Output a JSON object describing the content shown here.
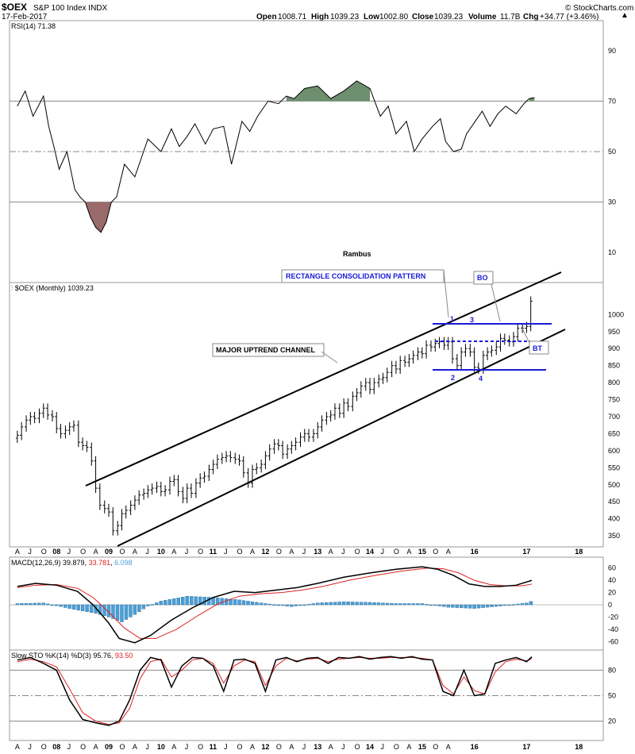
{
  "header": {
    "symbol": "$OEX",
    "name": "S&P 100 Index INDX",
    "date": "17-Feb-2017",
    "open_label": "Open",
    "open": "1008.71",
    "high_label": "High",
    "high": "1039.23",
    "low_label": "Low",
    "low": "1002.80",
    "close_label": "Close",
    "close": "1039.23",
    "volume_label": "Volume",
    "volume": "11.7B",
    "chg_label": "Chg",
    "chg": "+34.77 (+3.46%)",
    "watermark": "© StockCharts.com",
    "author": "Rambus"
  },
  "colors": {
    "price": "#000000",
    "channel": "#000000",
    "pattern_blue": "#1a1ad8",
    "macd_signal": "#e02020",
    "histogram": "#4aa0d8",
    "rsi_overbought_fill": "#6e8f6e",
    "rsi_oversold_fill": "#9a6a6a",
    "sto_d": "#e02020"
  },
  "chart_data": [
    {
      "type": "line",
      "panel": "rsi",
      "legend": "RSI(14) 71.38",
      "ylim": [
        0,
        100
      ],
      "yticks": [
        10,
        30,
        50,
        70,
        90
      ],
      "reference_lines": {
        "overbought": 70,
        "midline": 50,
        "oversold": 30
      },
      "series": [
        {
          "name": "RSI(14)",
          "x": [
            2007.25,
            2007.4,
            2007.55,
            2007.75,
            2007.85,
            2007.95,
            2008.05,
            2008.2,
            2008.35,
            2008.45,
            2008.55,
            2008.65,
            2008.75,
            2008.85,
            2008.95,
            2009.05,
            2009.15,
            2009.3,
            2009.5,
            2009.75,
            2010.0,
            2010.2,
            2010.35,
            2010.5,
            2010.65,
            2010.85,
            2011.0,
            2011.2,
            2011.35,
            2011.55,
            2011.7,
            2011.85,
            2012.05,
            2012.25,
            2012.4,
            2012.55,
            2012.75,
            2013.0,
            2013.25,
            2013.5,
            2013.75,
            2014.0,
            2014.2,
            2014.35,
            2014.5,
            2014.7,
            2014.85,
            2015.0,
            2015.2,
            2015.35,
            2015.45,
            2015.6,
            2015.75,
            2015.85,
            2015.95,
            2016.05,
            2016.15,
            2016.3,
            2016.45,
            2016.6,
            2016.8,
            2016.95,
            2017.05,
            2017.15
          ],
          "values": [
            68,
            74,
            64,
            72,
            60,
            52,
            43,
            50,
            35,
            32,
            30,
            24,
            20,
            18,
            22,
            30,
            32,
            45,
            40,
            55,
            50,
            59,
            52,
            56,
            61,
            53,
            59,
            60,
            45,
            62,
            58,
            64,
            70,
            69,
            72,
            71,
            75,
            76,
            71,
            74,
            78,
            75,
            64,
            68,
            57,
            62,
            50,
            55,
            60,
            63,
            54,
            50,
            51,
            57,
            60,
            63,
            66,
            60,
            65,
            68,
            65,
            69,
            71,
            71.38
          ]
        }
      ]
    },
    {
      "type": "ohlc",
      "panel": "price",
      "title": "$OEX (Monthly) 1039.23",
      "ylim": [
        320,
        1080
      ],
      "yticks": [
        350,
        400,
        450,
        500,
        550,
        600,
        650,
        700,
        750,
        800,
        850,
        900,
        950,
        1000
      ],
      "series": [
        {
          "name": "$OEX",
          "x": [
            2007.25,
            2007.33,
            2007.42,
            2007.5,
            2007.58,
            2007.67,
            2007.75,
            2007.83,
            2007.92,
            2008.0,
            2008.08,
            2008.17,
            2008.25,
            2008.33,
            2008.42,
            2008.5,
            2008.58,
            2008.67,
            2008.75,
            2008.83,
            2008.92,
            2009.0,
            2009.08,
            2009.17,
            2009.25,
            2009.33,
            2009.42,
            2009.5,
            2009.58,
            2009.67,
            2009.75,
            2009.83,
            2009.92,
            2010.0,
            2010.08,
            2010.17,
            2010.25,
            2010.33,
            2010.42,
            2010.5,
            2010.58,
            2010.67,
            2010.75,
            2010.83,
            2010.92,
            2011.0,
            2011.08,
            2011.17,
            2011.25,
            2011.33,
            2011.42,
            2011.5,
            2011.58,
            2011.67,
            2011.75,
            2011.83,
            2011.92,
            2012.0,
            2012.08,
            2012.17,
            2012.25,
            2012.33,
            2012.42,
            2012.5,
            2012.58,
            2012.67,
            2012.75,
            2012.83,
            2012.92,
            2013.0,
            2013.08,
            2013.17,
            2013.25,
            2013.33,
            2013.42,
            2013.5,
            2013.58,
            2013.67,
            2013.75,
            2013.83,
            2013.92,
            2014.0,
            2014.08,
            2014.17,
            2014.25,
            2014.33,
            2014.42,
            2014.5,
            2014.58,
            2014.67,
            2014.75,
            2014.83,
            2014.92,
            2015.0,
            2015.08,
            2015.17,
            2015.25,
            2015.33,
            2015.42,
            2015.5,
            2015.58,
            2015.67,
            2015.75,
            2015.83,
            2015.92,
            2016.0,
            2016.08,
            2016.17,
            2016.25,
            2016.33,
            2016.42,
            2016.5,
            2016.58,
            2016.67,
            2016.75,
            2016.83,
            2016.92,
            2017.0,
            2017.08
          ],
          "close": [
            645,
            670,
            690,
            700,
            695,
            710,
            725,
            705,
            700,
            665,
            650,
            660,
            670,
            675,
            625,
            615,
            610,
            570,
            490,
            440,
            430,
            420,
            365,
            380,
            415,
            425,
            440,
            455,
            470,
            475,
            485,
            490,
            495,
            480,
            485,
            510,
            515,
            480,
            460,
            490,
            475,
            505,
            520,
            525,
            545,
            560,
            575,
            580,
            585,
            580,
            575,
            570,
            535,
            505,
            545,
            550,
            560,
            585,
            605,
            620,
            615,
            590,
            605,
            615,
            625,
            640,
            650,
            640,
            650,
            670,
            690,
            700,
            705,
            725,
            710,
            740,
            730,
            760,
            770,
            790,
            800,
            780,
            800,
            810,
            815,
            830,
            850,
            840,
            865,
            860,
            870,
            880,
            890,
            885,
            910,
            905,
            915,
            920,
            910,
            920,
            870,
            850,
            890,
            900,
            890,
            845,
            840,
            880,
            890,
            895,
            905,
            930,
            925,
            920,
            935,
            960,
            960,
            965,
            1039.23
          ]
        }
      ]
    },
    {
      "type": "line",
      "panel": "macd",
      "legend": "MACD(12,26,9) 39.879, 33.781, 6.098",
      "ylim": [
        -70,
        70
      ],
      "yticks": [
        -60,
        -40,
        -20,
        0,
        20,
        40,
        60
      ],
      "series": [
        {
          "name": "MACD(12,26,9)",
          "x": [
            2007.25,
            2007.6,
            2008.0,
            2008.4,
            2008.7,
            2009.0,
            2009.2,
            2009.5,
            2009.8,
            2010.2,
            2010.6,
            2011.0,
            2011.4,
            2011.8,
            2012.2,
            2012.6,
            2013.0,
            2013.5,
            2014.0,
            2014.5,
            2015.0,
            2015.3,
            2015.6,
            2015.9,
            2016.2,
            2016.5,
            2016.8,
            2017.1
          ],
          "values": [
            30,
            35,
            32,
            22,
            0,
            -30,
            -55,
            -62,
            -50,
            -25,
            -5,
            12,
            22,
            20,
            24,
            28,
            35,
            45,
            52,
            58,
            62,
            58,
            48,
            34,
            30,
            30,
            32,
            39.879
          ]
        },
        {
          "name": "signal",
          "x": [
            2007.25,
            2007.6,
            2008.0,
            2008.4,
            2008.7,
            2009.0,
            2009.3,
            2009.6,
            2009.9,
            2010.3,
            2010.7,
            2011.1,
            2011.5,
            2011.9,
            2012.3,
            2012.7,
            2013.1,
            2013.6,
            2014.1,
            2014.6,
            2015.1,
            2015.4,
            2015.7,
            2016.0,
            2016.3,
            2016.6,
            2016.9,
            2017.1
          ],
          "values": [
            28,
            32,
            33,
            27,
            12,
            -12,
            -38,
            -55,
            -55,
            -40,
            -18,
            2,
            14,
            18,
            20,
            24,
            30,
            40,
            48,
            55,
            60,
            59,
            52,
            40,
            33,
            31,
            31,
            33.781
          ]
        },
        {
          "name": "histogram",
          "x": [
            2007.25,
            2007.75,
            2008.25,
            2008.75,
            2009.0,
            2009.25,
            2009.5,
            2009.75,
            2010.0,
            2010.5,
            2011.0,
            2011.5,
            2012.0,
            2012.5,
            2013.0,
            2013.5,
            2014.0,
            2014.5,
            2015.0,
            2015.5,
            2016.0,
            2016.5,
            2017.0,
            2017.1
          ],
          "values": [
            2,
            3,
            -6,
            -14,
            -20,
            -28,
            -16,
            -2,
            6,
            14,
            12,
            8,
            2,
            -3,
            3,
            5,
            4,
            2,
            2,
            -4,
            -6,
            -2,
            3,
            6.098
          ]
        }
      ]
    },
    {
      "type": "line",
      "panel": "stochastic",
      "legend": "Slow STO %K(14) %D(3) 95.76, 93.50",
      "ylim": [
        0,
        100
      ],
      "yticks": [
        20,
        50,
        80
      ],
      "reference_lines": {
        "overbought": 80,
        "midline": 50,
        "oversold": 20
      },
      "series": [
        {
          "name": "%K(14)",
          "x": [
            2007.25,
            2007.5,
            2007.75,
            2008.0,
            2008.25,
            2008.5,
            2008.75,
            2009.0,
            2009.2,
            2009.4,
            2009.6,
            2009.8,
            2010.0,
            2010.2,
            2010.4,
            2010.6,
            2010.8,
            2011.0,
            2011.2,
            2011.4,
            2011.6,
            2011.8,
            2012.0,
            2012.2,
            2012.4,
            2012.6,
            2012.8,
            2013.0,
            2013.2,
            2013.4,
            2013.6,
            2013.8,
            2014.0,
            2014.2,
            2014.4,
            2014.6,
            2014.8,
            2015.0,
            2015.2,
            2015.4,
            2015.6,
            2015.8,
            2016.0,
            2016.2,
            2016.4,
            2016.6,
            2016.8,
            2017.0,
            2017.1
          ],
          "values": [
            92,
            95,
            88,
            80,
            45,
            22,
            18,
            15,
            20,
            45,
            80,
            95,
            92,
            60,
            85,
            95,
            94,
            85,
            55,
            92,
            93,
            88,
            55,
            92,
            95,
            90,
            94,
            95,
            88,
            95,
            94,
            96,
            93,
            95,
            96,
            94,
            96,
            93,
            92,
            55,
            50,
            80,
            50,
            52,
            88,
            92,
            95,
            90,
            95.76
          ]
        },
        {
          "name": "%D(3)",
          "x": [
            2007.25,
            2007.5,
            2007.75,
            2008.0,
            2008.25,
            2008.5,
            2008.75,
            2009.0,
            2009.2,
            2009.4,
            2009.6,
            2009.8,
            2010.0,
            2010.2,
            2010.4,
            2010.6,
            2010.8,
            2011.0,
            2011.2,
            2011.4,
            2011.6,
            2011.8,
            2012.0,
            2012.2,
            2012.4,
            2012.6,
            2012.8,
            2013.0,
            2013.2,
            2013.4,
            2013.6,
            2013.8,
            2014.0,
            2014.2,
            2014.4,
            2014.6,
            2014.8,
            2015.0,
            2015.2,
            2015.4,
            2015.6,
            2015.8,
            2016.0,
            2016.2,
            2016.4,
            2016.6,
            2016.8,
            2017.0,
            2017.1
          ],
          "values": [
            90,
            93,
            90,
            84,
            58,
            30,
            20,
            16,
            18,
            35,
            70,
            90,
            93,
            72,
            80,
            92,
            94,
            88,
            65,
            85,
            92,
            90,
            62,
            85,
            94,
            91,
            93,
            94,
            90,
            93,
            94,
            95,
            94,
            94,
            95,
            95,
            95,
            94,
            92,
            62,
            52,
            72,
            56,
            52,
            78,
            90,
            93,
            91,
            93.5
          ]
        }
      ]
    }
  ],
  "x_axis": {
    "year_labels": [
      "08",
      "09",
      "10",
      "11",
      "12",
      "13",
      "14",
      "15",
      "16",
      "17",
      "18"
    ],
    "month_labels": [
      "A",
      "J",
      "O",
      "A",
      "J",
      "O",
      "A",
      "J",
      "O",
      "A",
      "J",
      "O",
      "A",
      "J",
      "O",
      "A",
      "J",
      "O",
      "A",
      "J",
      "O",
      "A",
      "J",
      "O",
      "A",
      "J",
      "O",
      "A",
      "J",
      "O",
      "A",
      "J",
      "O",
      "A"
    ]
  },
  "annotations": {
    "major_uptrend_channel": "MAJOR UPTREND CHANNEL",
    "rectangle_pattern": "RECTANGLE CONSOLIDATION PATTERN",
    "bo": "BO",
    "bt": "BT",
    "reversal_points": [
      "1",
      "2",
      "3",
      "4"
    ]
  }
}
